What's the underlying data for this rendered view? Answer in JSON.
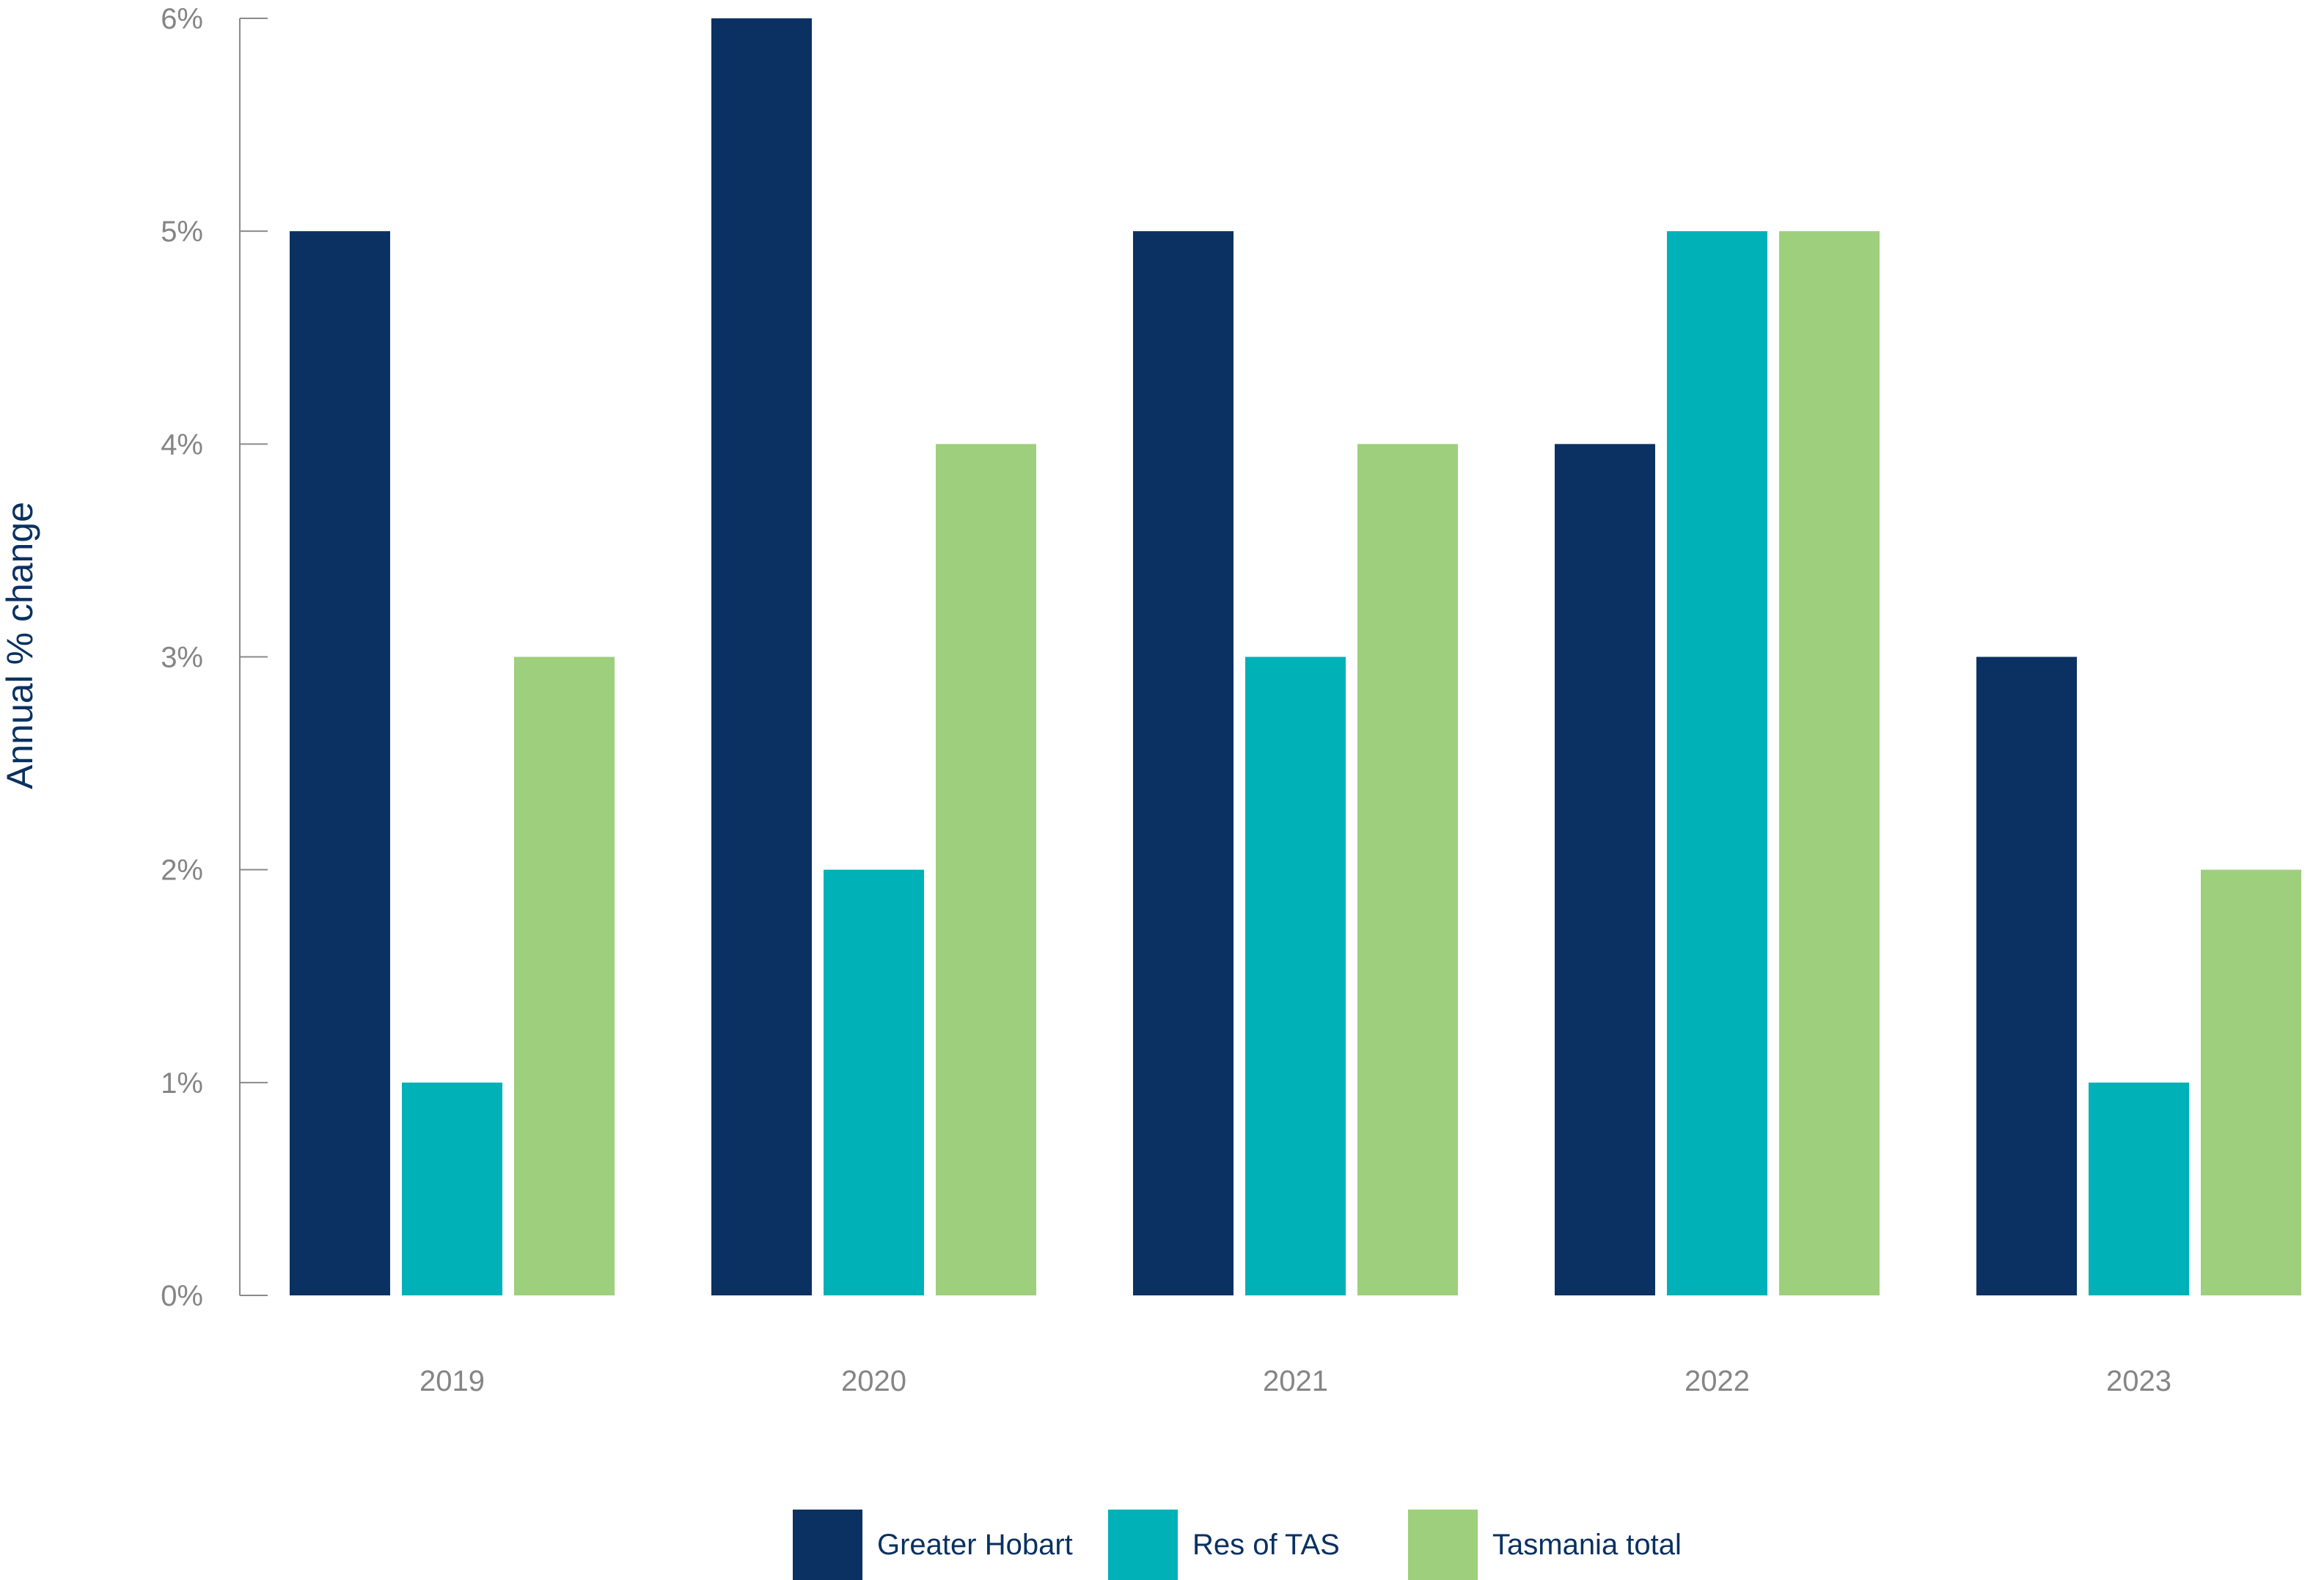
{
  "chart_data": {
    "type": "bar",
    "title": "",
    "xlabel": "",
    "ylabel": "Annual % change",
    "ylim": [
      0,
      6
    ],
    "yticks": [
      "0%",
      "1%",
      "2%",
      "3%",
      "4%",
      "5%",
      "6%"
    ],
    "grid": false,
    "legend_position": "bottom",
    "categories": [
      "2019",
      "2020",
      "2021",
      "2022",
      "2023"
    ],
    "series": [
      {
        "name": "Greater Hobart",
        "color": "#0a3161",
        "values": [
          5,
          6,
          5,
          4,
          3
        ]
      },
      {
        "name": "Res of TAS",
        "color": "#00b1b8",
        "values": [
          1,
          2,
          3,
          5,
          1
        ]
      },
      {
        "name": "Tasmania total",
        "color": "#9ecf7c",
        "values": [
          3,
          4,
          4,
          5,
          2
        ]
      }
    ]
  }
}
